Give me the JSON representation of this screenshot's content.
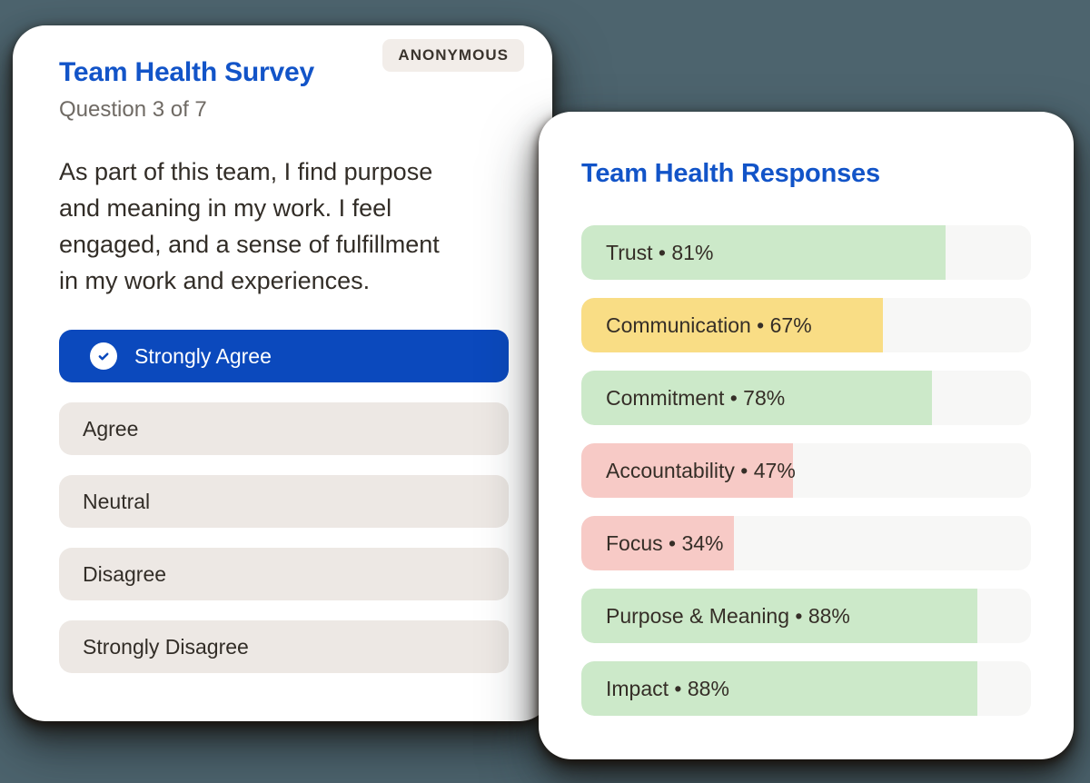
{
  "page": {
    "background": "#4d646e"
  },
  "survey_card": {
    "title": "Team Health Survey",
    "subtitle": "Question 3 of 7",
    "badge": "ANONYMOUS",
    "question": "As part of this team, I find purpose and meaning in my work. I feel engaged, and a sense of fulfillment in my work and experiences.",
    "question_lines": [
      "As part of this team, I find purpose",
      "and meaning in my work. I feel",
      "engaged, and a sense of fulfillment",
      "in my work and experiences."
    ],
    "options": [
      {
        "label": "Strongly Agree",
        "selected": true
      },
      {
        "label": "Agree",
        "selected": false
      },
      {
        "label": "Neutral",
        "selected": false
      },
      {
        "label": "Disagree",
        "selected": false
      },
      {
        "label": "Strongly Disagree",
        "selected": false
      }
    ],
    "accent_blue": "#0b49bd",
    "title_blue": "#1254c8"
  },
  "responses_card": {
    "title": "Team Health Responses",
    "bullet": "•",
    "bars": [
      {
        "label": "Trust",
        "value": 81,
        "color": "green"
      },
      {
        "label": "Communication",
        "value": 67,
        "color": "yellow"
      },
      {
        "label": "Commitment",
        "value": 78,
        "color": "green"
      },
      {
        "label": "Accountability",
        "value": 47,
        "color": "red"
      },
      {
        "label": "Focus",
        "value": 34,
        "color": "red"
      },
      {
        "label": "Purpose & Meaning",
        "value": 88,
        "color": "green"
      },
      {
        "label": "Impact",
        "value": 88,
        "color": "green"
      }
    ],
    "colors": {
      "green": "#cce9c9",
      "yellow": "#f9dd85",
      "red": "#f7cac6",
      "track": "#f7f7f6"
    }
  },
  "chart_data": {
    "type": "bar",
    "orientation": "horizontal",
    "title": "Team Health Responses",
    "categories": [
      "Trust",
      "Communication",
      "Commitment",
      "Accountability",
      "Focus",
      "Purpose & Meaning",
      "Impact"
    ],
    "values": [
      81,
      67,
      78,
      47,
      34,
      88,
      88
    ],
    "unit": "%",
    "xlim": [
      0,
      100
    ],
    "bar_colors": [
      "#cce9c9",
      "#f9dd85",
      "#cce9c9",
      "#f7cac6",
      "#f7cac6",
      "#cce9c9",
      "#cce9c9"
    ]
  }
}
